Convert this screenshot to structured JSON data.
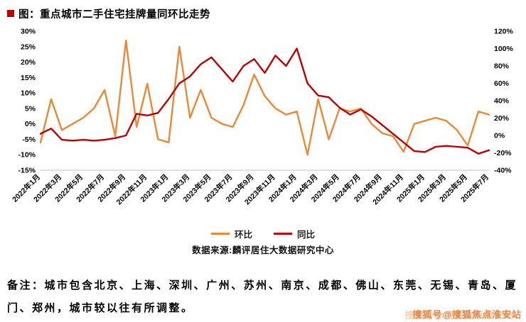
{
  "chart_data": {
    "type": "line",
    "title": "图：重点城市二手住宅挂牌量同环比走势",
    "categories": [
      "2022年1月",
      "2022年2月",
      "2022年3月",
      "2022年4月",
      "2022年5月",
      "2022年6月",
      "2022年7月",
      "2022年8月",
      "2022年9月",
      "2022年10月",
      "2022年11月",
      "2022年12月",
      "2023年1月",
      "2023年2月",
      "2023年3月",
      "2023年4月",
      "2023年5月",
      "2023年6月",
      "2023年7月",
      "2023年8月",
      "2023年9月",
      "2023年10月",
      "2023年11月",
      "2023年12月",
      "2024年1月",
      "2024年2月",
      "2024年3月",
      "2024年4月",
      "2024年5月",
      "2024年6月",
      "2024年7月",
      "2024年8月",
      "2024年9月",
      "2024年10月",
      "2024年11月",
      "2024年12月",
      "2025年1月",
      "2025年2月",
      "2025年3月",
      "2025年4月",
      "2025年5月",
      "2025年6月",
      "2025年7月"
    ],
    "x_tick_every": 2,
    "left_axis": {
      "min": -15,
      "max": 30,
      "step": 5,
      "unit": "%"
    },
    "right_axis": {
      "min": -40,
      "max": 120,
      "step": 20,
      "unit": "%"
    },
    "series": [
      {
        "name": "环比",
        "axis": "left",
        "color": "#ED8733",
        "values": [
          -6,
          8,
          -2,
          0,
          2,
          5,
          11,
          -4,
          27,
          -1,
          13,
          -5,
          -6,
          25,
          2,
          11,
          2,
          0,
          -1,
          6,
          16,
          9,
          5,
          3,
          4,
          -10,
          8,
          -5,
          5,
          4,
          5,
          0,
          -3,
          -4,
          -9,
          0,
          1,
          2,
          1,
          -2,
          -7,
          4,
          3
        ]
      },
      {
        "name": "同比",
        "axis": "right",
        "color": "#C00000",
        "values": [
          2,
          8,
          -5,
          -6,
          -5,
          -6,
          -5,
          -3,
          0,
          25,
          23,
          26,
          42,
          60,
          68,
          82,
          90,
          76,
          62,
          80,
          88,
          72,
          92,
          80,
          100,
          60,
          46,
          44,
          32,
          24,
          30,
          22,
          12,
          2,
          -8,
          -18,
          -19,
          -13,
          -12,
          -13,
          -14,
          -21,
          -17
        ]
      }
    ],
    "legend_position": "bottom",
    "grid": false,
    "source": "数据来源:麟评居住大数据研究中心"
  },
  "note": "备注：城市包含北京、上海、深圳、广州、苏州、南京、成都、佛山、东莞、无锡、青岛、厦门、郑州，城市较以往有所调整。",
  "watermark": "搜狐号@搜狐焦点淮安站",
  "colors": {
    "mom": "#ED8733",
    "yoy": "#C00000",
    "bullet": "#C00000",
    "axis_line": "#bfbfbf"
  }
}
